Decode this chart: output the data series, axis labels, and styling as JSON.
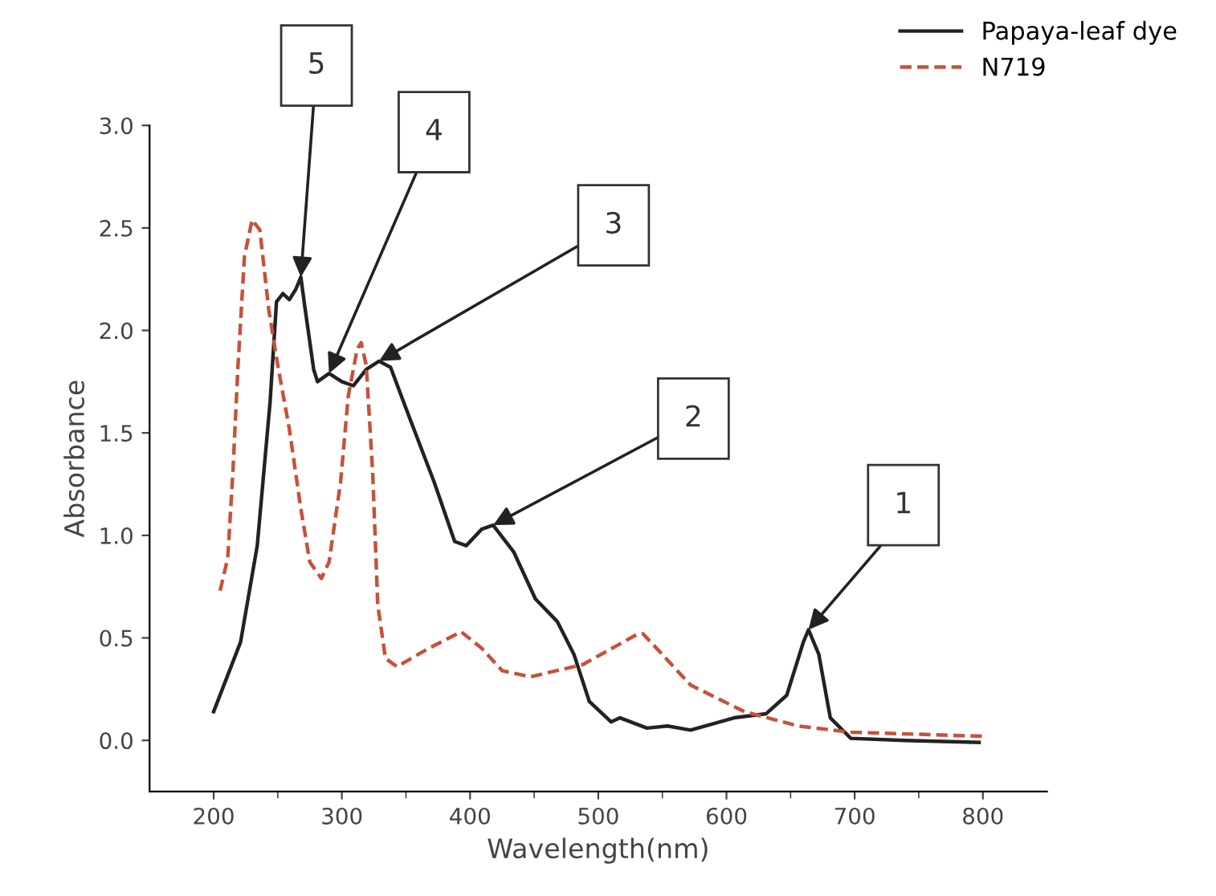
{
  "chart_data": {
    "type": "line",
    "xlabel": "Wavelength(nm)",
    "ylabel": "Absorbance",
    "xlim": [
      150,
      850
    ],
    "ylim": [
      -0.25,
      3.0
    ],
    "xticks": [
      200,
      300,
      400,
      500,
      600,
      700,
      800
    ],
    "yticks": [
      {
        "value": 0,
        "label": "0.0"
      },
      0.5,
      {
        "value": 1,
        "label": "1.0"
      },
      1.5,
      {
        "value": 2,
        "label": "2.0"
      },
      2.5,
      {
        "value": 3,
        "label": "3.0"
      }
    ],
    "grid": false,
    "legend": "top right",
    "marker": "none",
    "series": [
      {
        "name": "Papaya-leaf dye",
        "color": "#222222",
        "line_style": "solid",
        "x": [
          200,
          221,
          234,
          244,
          249,
          254,
          259,
          264,
          268,
          271,
          278,
          281,
          290,
          300,
          309,
          319,
          329,
          338,
          353,
          372,
          388,
          397,
          409,
          418,
          434,
          451,
          468,
          481,
          493,
          510,
          517,
          538,
          554,
          572,
          606,
          631,
          647,
          660,
          664,
          672,
          681,
          697,
          739,
          797
        ],
        "values": [
          0.14,
          0.48,
          0.95,
          1.65,
          2.14,
          2.18,
          2.15,
          2.2,
          2.26,
          2.12,
          1.81,
          1.75,
          1.79,
          1.75,
          1.73,
          1.81,
          1.85,
          1.82,
          1.57,
          1.26,
          0.97,
          0.95,
          1.03,
          1.05,
          0.92,
          0.69,
          0.58,
          0.42,
          0.19,
          0.09,
          0.11,
          0.06,
          0.07,
          0.05,
          0.11,
          0.13,
          0.22,
          0.48,
          0.54,
          0.42,
          0.11,
          0.01,
          0.0,
          -0.01
        ]
      },
      {
        "name": "N719",
        "color": "#c8503c",
        "line_style": "dashed",
        "x": [
          205,
          211,
          215,
          219,
          224,
          230,
          236,
          243,
          250,
          259,
          268,
          275,
          284,
          290,
          299,
          305,
          312,
          315,
          319,
          324,
          328,
          334,
          343,
          368,
          393,
          409,
          425,
          447,
          488,
          531,
          535,
          572,
          614,
          656,
          697,
          800
        ],
        "values": [
          0.73,
          0.89,
          1.31,
          1.83,
          2.36,
          2.54,
          2.49,
          2.1,
          1.83,
          1.52,
          1.13,
          0.87,
          0.79,
          0.87,
          1.26,
          1.68,
          1.91,
          1.94,
          1.83,
          1.31,
          0.66,
          0.4,
          0.36,
          0.45,
          0.53,
          0.45,
          0.34,
          0.31,
          0.37,
          0.52,
          0.52,
          0.27,
          0.14,
          0.07,
          0.04,
          0.02
        ]
      }
    ],
    "annotations": [
      {
        "text": "1",
        "x": 664,
        "y": 0.54
      },
      {
        "text": "2",
        "x": 418,
        "y": 1.05
      },
      {
        "text": "3",
        "x": 329,
        "y": 1.85
      },
      {
        "text": "4",
        "x": 290,
        "y": 1.79
      },
      {
        "text": "5",
        "x": 268,
        "y": 2.26
      }
    ]
  }
}
